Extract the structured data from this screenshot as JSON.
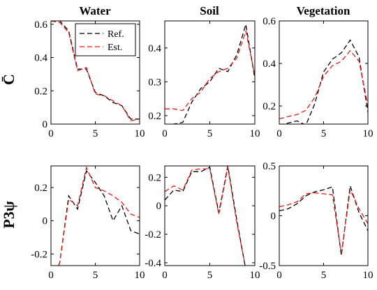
{
  "chart_data": [
    {
      "type": "line",
      "title": "Water",
      "ylabel": "C̄",
      "xlim": [
        0,
        10
      ],
      "ylim": [
        0,
        0.62
      ],
      "xticks": [
        "0",
        "5",
        "10"
      ],
      "yticks": [
        "0",
        "0.2",
        "0.4",
        "0.6"
      ],
      "ytick_values": [
        0,
        0.2,
        0.4,
        0.6
      ],
      "x": [
        0,
        1,
        2,
        3,
        4,
        5,
        6,
        7,
        8,
        9,
        10
      ],
      "series": [
        {
          "name": "Ref.",
          "color": "#000000",
          "values": [
            0.62,
            0.62,
            0.56,
            0.33,
            0.33,
            0.19,
            0.17,
            0.13,
            0.11,
            0.03,
            0.03
          ]
        },
        {
          "name": "Est.",
          "color": "#e41a1c",
          "values": [
            0.62,
            0.61,
            0.55,
            0.32,
            0.34,
            0.18,
            0.17,
            0.14,
            0.11,
            0.02,
            0.03
          ]
        }
      ],
      "legend": {
        "placement": "top-right",
        "entries": [
          "Ref.",
          "Est."
        ]
      }
    },
    {
      "type": "line",
      "title": "Soil",
      "xlim": [
        0,
        10
      ],
      "ylim": [
        0.175,
        0.48
      ],
      "xticks": [
        "0",
        "5",
        "10"
      ],
      "yticks": [
        "0.2",
        "0.3",
        "0.4"
      ],
      "ytick_values": [
        0.2,
        0.3,
        0.4
      ],
      "x": [
        0,
        1,
        2,
        3,
        4,
        5,
        6,
        7,
        8,
        9,
        10
      ],
      "series": [
        {
          "name": "Ref.",
          "color": "#000000",
          "values": [
            0.17,
            0.175,
            0.18,
            0.24,
            0.28,
            0.3,
            0.34,
            0.33,
            0.38,
            0.47,
            0.31
          ]
        },
        {
          "name": "Est.",
          "color": "#e41a1c",
          "values": [
            0.22,
            0.22,
            0.215,
            0.25,
            0.27,
            0.31,
            0.33,
            0.34,
            0.37,
            0.45,
            0.32
          ]
        }
      ]
    },
    {
      "type": "line",
      "title": "Vegetation",
      "xlim": [
        0,
        10
      ],
      "ylim": [
        0.115,
        0.6
      ],
      "xticks": [
        "0",
        "5",
        "10"
      ],
      "yticks": [
        "0.2",
        "0.4",
        "0.6"
      ],
      "ytick_values": [
        0.2,
        0.4,
        0.6
      ],
      "x": [
        0,
        1,
        2,
        3,
        4,
        5,
        6,
        7,
        8,
        9,
        10
      ],
      "series": [
        {
          "name": "Ref.",
          "color": "#000000",
          "values": [
            0.11,
            0.12,
            0.13,
            0.11,
            0.21,
            0.36,
            0.42,
            0.45,
            0.51,
            0.43,
            0.17
          ]
        },
        {
          "name": "Est.",
          "color": "#e41a1c",
          "values": [
            0.14,
            0.15,
            0.16,
            0.18,
            0.24,
            0.34,
            0.39,
            0.41,
            0.46,
            0.41,
            0.2
          ]
        }
      ]
    },
    {
      "type": "line",
      "ylabel": "P3ψ",
      "xlim": [
        0,
        10
      ],
      "ylim": [
        -0.27,
        0.33
      ],
      "xticks": [
        "0",
        "5",
        "10"
      ],
      "yticks": [
        "-0.2",
        "0",
        "0.2"
      ],
      "ytick_values": [
        -0.2,
        0,
        0.2
      ],
      "x": [
        0,
        1,
        2,
        3,
        4,
        5,
        6,
        7,
        8,
        9,
        10
      ],
      "series": [
        {
          "name": "Ref.",
          "color": "#000000",
          "values": [
            -0.4,
            -0.25,
            0.15,
            0.07,
            0.3,
            0.23,
            0.15,
            0.0,
            0.09,
            -0.06,
            -0.08
          ]
        },
        {
          "name": "Est.",
          "color": "#e41a1c",
          "values": [
            -0.4,
            -0.25,
            0.13,
            0.09,
            0.32,
            0.2,
            0.18,
            0.15,
            0.11,
            0.04,
            0.02
          ]
        }
      ]
    },
    {
      "type": "line",
      "xlim": [
        0,
        10
      ],
      "ylim": [
        -0.42,
        0.28
      ],
      "xticks": [
        "0",
        "5",
        "10"
      ],
      "yticks": [
        "-0.4",
        "-0.2",
        "0",
        "0.2"
      ],
      "ytick_values": [
        -0.4,
        -0.2,
        0,
        0.2
      ],
      "x": [
        0,
        1,
        2,
        3,
        4,
        5,
        6,
        7,
        8,
        9,
        10
      ],
      "series": [
        {
          "name": "Ref.",
          "color": "#000000",
          "values": [
            0.04,
            0.11,
            0.1,
            0.24,
            0.24,
            0.27,
            -0.05,
            0.28,
            -0.1,
            -0.45,
            -0.45
          ]
        },
        {
          "name": "Est.",
          "color": "#e41a1c",
          "values": [
            0.1,
            0.14,
            0.11,
            0.25,
            0.26,
            0.26,
            -0.06,
            0.27,
            -0.12,
            -0.44,
            -0.44
          ]
        }
      ]
    },
    {
      "type": "line",
      "xlim": [
        0,
        10
      ],
      "ylim": [
        -0.5,
        0.5
      ],
      "xticks": [
        "0",
        "5",
        "10"
      ],
      "yticks": [
        "-0.5",
        "0",
        "0.5"
      ],
      "ytick_values": [
        -0.5,
        0,
        0.5
      ],
      "x": [
        0,
        1,
        2,
        3,
        4,
        5,
        6,
        7,
        8,
        9,
        10
      ],
      "series": [
        {
          "name": "Ref.",
          "color": "#000000",
          "values": [
            0.05,
            0.07,
            0.12,
            0.2,
            0.24,
            0.26,
            0.29,
            -0.4,
            0.3,
            0.03,
            -0.15
          ]
        },
        {
          "name": "Est.",
          "color": "#e41a1c",
          "values": [
            0.09,
            0.11,
            0.14,
            0.22,
            0.23,
            0.22,
            0.21,
            -0.38,
            0.26,
            0.07,
            -0.08
          ]
        }
      ]
    }
  ]
}
